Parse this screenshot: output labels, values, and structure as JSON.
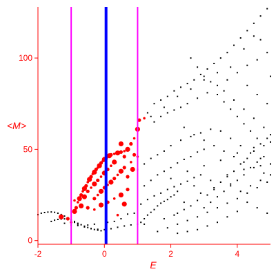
{
  "chart_data": {
    "type": "scatter",
    "xlabel": "E",
    "ylabel": "<M>",
    "xlim": [
      -2,
      5
    ],
    "ylim": [
      -2,
      128
    ],
    "x_ticks": [
      -2,
      0,
      2,
      4
    ],
    "y_ticks": [
      0,
      50,
      100
    ],
    "grid": false,
    "colors": {
      "axes": "#ff0000",
      "background_points": "#000000",
      "highlighted_points": "#ff0000",
      "center_line": "#0000ff",
      "bound_lines": "#ff00ff"
    },
    "vertical_lines": [
      {
        "x": -1.0,
        "color": "#ff00ff"
      },
      {
        "x": 0.05,
        "color": "#0000ff"
      },
      {
        "x": 1.0,
        "color": "#ff00ff"
      }
    ],
    "series": [
      {
        "color": "#000000",
        "points": [
          [
            -2.0,
            14.2
          ],
          [
            -1.9,
            15.0
          ],
          [
            -1.8,
            15.4
          ],
          [
            -1.7,
            15.6
          ],
          [
            -1.6,
            15.7
          ],
          [
            -1.5,
            15.5
          ],
          [
            -1.4,
            15.0
          ],
          [
            -1.3,
            14.3
          ],
          [
            -1.2,
            13.4
          ],
          [
            -1.1,
            12.4
          ],
          [
            -1.0,
            11.5
          ],
          [
            -0.9,
            10.5
          ],
          [
            -0.8,
            9.5
          ],
          [
            -0.7,
            8.7
          ],
          [
            -0.6,
            7.9
          ],
          [
            -0.5,
            7.2
          ],
          [
            -0.4,
            6.6
          ],
          [
            -0.3,
            6.1
          ],
          [
            -0.2,
            5.7
          ],
          [
            -0.1,
            5.4
          ],
          [
            -1.6,
            10.5
          ],
          [
            -1.5,
            11.2
          ],
          [
            -1.4,
            11.6
          ],
          [
            -1.3,
            11.8
          ],
          [
            -1.2,
            11.9
          ],
          [
            -1.1,
            11.7
          ],
          [
            -1.0,
            11.0
          ],
          [
            -0.9,
            10.0
          ],
          [
            -0.8,
            9.0
          ],
          [
            -0.6,
            7.5
          ],
          [
            -0.4,
            6.5
          ],
          [
            -0.2,
            6.2
          ],
          [
            0.0,
            6.0
          ],
          [
            0.2,
            6.5
          ],
          [
            0.4,
            7.3
          ],
          [
            0.6,
            8.0
          ],
          [
            0.8,
            8.6
          ],
          [
            1.0,
            9.0
          ],
          [
            1.1,
            10.0
          ],
          [
            1.2,
            12.0
          ],
          [
            -1.2,
            9.5
          ],
          [
            -1.0,
            8.5
          ],
          [
            -0.8,
            8.2
          ],
          [
            -0.5,
            8.5
          ],
          [
            -0.3,
            9.0
          ],
          [
            0.1,
            10.0
          ],
          [
            0.3,
            10.5
          ],
          [
            0.5,
            12.0
          ],
          [
            0.7,
            14.5
          ],
          [
            0.9,
            15.0
          ],
          [
            1.2,
            9.0
          ],
          [
            1.3,
            14.0
          ],
          [
            1.4,
            15.5
          ],
          [
            1.5,
            17.0
          ],
          [
            1.6,
            19.0
          ],
          [
            1.7,
            20.5
          ],
          [
            1.8,
            21.5
          ],
          [
            1.9,
            22.5
          ],
          [
            2.0,
            24.0
          ],
          [
            2.1,
            25.0
          ],
          [
            1.1,
            20.0
          ],
          [
            1.3,
            22.5
          ],
          [
            1.5,
            24.5
          ],
          [
            1.7,
            26.0
          ],
          [
            1.9,
            28.0
          ],
          [
            2.1,
            29.5
          ],
          [
            2.3,
            31.0
          ],
          [
            2.5,
            32.5
          ],
          [
            2.7,
            34.5
          ],
          [
            2.9,
            36.0
          ],
          [
            1.2,
            30.0
          ],
          [
            1.4,
            33.0
          ],
          [
            1.6,
            36.0
          ],
          [
            1.8,
            38.0
          ],
          [
            2.0,
            40.0
          ],
          [
            2.2,
            42.5
          ],
          [
            2.4,
            44.5
          ],
          [
            2.6,
            46.0
          ],
          [
            2.8,
            48.5
          ],
          [
            3.0,
            50.0
          ],
          [
            1.0,
            39.0
          ],
          [
            1.2,
            42.0
          ],
          [
            1.4,
            45.0
          ],
          [
            1.6,
            47.0
          ],
          [
            1.8,
            49.0
          ],
          [
            2.0,
            52.0
          ],
          [
            2.3,
            55.0
          ],
          [
            2.6,
            57.0
          ],
          [
            2.9,
            59.0
          ],
          [
            3.2,
            61.0
          ],
          [
            1.3,
            70.0
          ],
          [
            1.5,
            75.0
          ],
          [
            1.7,
            77.0
          ],
          [
            1.9,
            79.0
          ],
          [
            2.1,
            82.0
          ],
          [
            2.3,
            84.0
          ],
          [
            2.5,
            86.0
          ],
          [
            2.7,
            88.0
          ],
          [
            2.9,
            91.0
          ],
          [
            3.1,
            94.0
          ],
          [
            3.3,
            97.0
          ],
          [
            3.5,
            100.0
          ],
          [
            3.7,
            103.0
          ],
          [
            3.9,
            107.0
          ],
          [
            4.1,
            111.0
          ],
          [
            4.3,
            115.0
          ],
          [
            4.5,
            119.0
          ],
          [
            4.7,
            123.0
          ],
          [
            4.9,
            127.0
          ],
          [
            1.5,
            65.0
          ],
          [
            1.7,
            68.0
          ],
          [
            1.9,
            70.0
          ],
          [
            2.1,
            71.5
          ],
          [
            2.3,
            73.0
          ],
          [
            2.5,
            75.0
          ],
          [
            2.8,
            78.0
          ],
          [
            3.1,
            81.0
          ],
          [
            3.4,
            85.0
          ],
          [
            3.7,
            88.0
          ],
          [
            4.0,
            92.0
          ],
          [
            4.3,
            96.0
          ],
          [
            4.6,
            99.0
          ],
          [
            4.9,
            103.0
          ],
          [
            2.6,
            100.0
          ],
          [
            2.8,
            95.0
          ],
          [
            3.0,
            90.0
          ],
          [
            3.2,
            87.0
          ],
          [
            3.4,
            80.0
          ],
          [
            3.6,
            76.0
          ],
          [
            3.8,
            72.0
          ],
          [
            4.0,
            68.0
          ],
          [
            4.2,
            64.0
          ],
          [
            4.4,
            60.0
          ],
          [
            4.6,
            56.0
          ],
          [
            4.8,
            52.0
          ],
          [
            5.0,
            58.0
          ],
          [
            3.0,
            18.0
          ],
          [
            3.2,
            21.0
          ],
          [
            3.4,
            24.0
          ],
          [
            3.6,
            27.0
          ],
          [
            3.8,
            30.0
          ],
          [
            4.0,
            33.0
          ],
          [
            4.2,
            36.0
          ],
          [
            4.4,
            40.0
          ],
          [
            4.6,
            43.0
          ],
          [
            4.8,
            46.0
          ],
          [
            2.2,
            15.0
          ],
          [
            2.4,
            17.0
          ],
          [
            2.6,
            19.0
          ],
          [
            2.8,
            22.0
          ],
          [
            3.1,
            25.0
          ],
          [
            3.3,
            28.0
          ],
          [
            3.5,
            32.0
          ],
          [
            3.7,
            35.0
          ],
          [
            3.9,
            38.0
          ],
          [
            4.1,
            42.0
          ],
          [
            4.3,
            45.0
          ],
          [
            4.5,
            49.0
          ],
          [
            4.7,
            53.0
          ],
          [
            4.9,
            56.0
          ],
          [
            1.6,
            5.0
          ],
          [
            1.9,
            7.0
          ],
          [
            2.2,
            9.0
          ],
          [
            2.5,
            11.0
          ],
          [
            2.8,
            13.0
          ],
          [
            3.1,
            15.5
          ],
          [
            3.4,
            18.0
          ],
          [
            3.7,
            20.5
          ],
          [
            4.0,
            23.0
          ],
          [
            4.3,
            26.0
          ],
          [
            4.6,
            29.0
          ],
          [
            4.9,
            32.0
          ],
          [
            2.4,
            62.0
          ],
          [
            2.7,
            58.0
          ],
          [
            3.0,
            55.0
          ],
          [
            3.3,
            52.0
          ],
          [
            3.6,
            49.0
          ],
          [
            3.9,
            46.0
          ],
          [
            4.2,
            43.0
          ],
          [
            4.5,
            40.0
          ],
          [
            4.8,
            37.0
          ],
          [
            2.0,
            34.0
          ],
          [
            2.5,
            38.0
          ],
          [
            3.0,
            41.0
          ],
          [
            3.5,
            44.0
          ],
          [
            4.0,
            48.0
          ],
          [
            4.5,
            51.0
          ],
          [
            5.0,
            54.0
          ],
          [
            2.2,
            27.0
          ],
          [
            2.7,
            30.0
          ],
          [
            3.2,
            33.0
          ],
          [
            3.7,
            36.0
          ],
          [
            4.2,
            39.0
          ],
          [
            4.7,
            41.0
          ],
          [
            1.8,
            12.0
          ],
          [
            2.1,
            14.0
          ],
          [
            2.4,
            21.0
          ],
          [
            2.9,
            26.0
          ],
          [
            3.3,
            29.0
          ],
          [
            3.8,
            31.0
          ],
          [
            4.1,
            27.0
          ],
          [
            4.4,
            30.0
          ],
          [
            4.7,
            33.0
          ],
          [
            5.0,
            36.0
          ],
          [
            3.5,
            60.0
          ],
          [
            3.8,
            56.0
          ],
          [
            4.1,
            52.0
          ],
          [
            4.4,
            48.0
          ],
          [
            4.7,
            45.0
          ],
          [
            5.0,
            42.0
          ],
          [
            4.9,
            15.0
          ],
          [
            4.6,
            18.0
          ],
          [
            4.3,
            21.0
          ],
          [
            4.0,
            16.0
          ],
          [
            3.7,
            13.0
          ],
          [
            3.4,
            10.0
          ],
          [
            3.1,
            8.0
          ],
          [
            2.8,
            6.0
          ],
          [
            2.5,
            5.0
          ],
          [
            2.2,
            4.0
          ],
          [
            4.8,
            62.0
          ],
          [
            4.5,
            67.0
          ],
          [
            4.2,
            72.0
          ],
          [
            3.9,
            77.0
          ],
          [
            3.6,
            82.0
          ],
          [
            4.3,
            85.0
          ],
          [
            4.6,
            80.0
          ],
          [
            4.9,
            75.0
          ],
          [
            5.0,
            90.0
          ],
          [
            4.7,
            110.0
          ],
          [
            4.5,
            112.0
          ],
          [
            4.2,
            105.0
          ],
          [
            3.8,
            95.0
          ],
          [
            3.4,
            92.0
          ],
          [
            3.0,
            88.0
          ],
          [
            2.6,
            83.0
          ],
          [
            2.2,
            79.0
          ],
          [
            1.8,
            73.0
          ],
          [
            1.4,
            68.0
          ]
        ]
      },
      {
        "color": "#ff0000",
        "points": [
          [
            -1.3,
            13.0
          ],
          [
            -1.1,
            12.0
          ],
          [
            -1.0,
            10.0
          ],
          [
            -0.9,
            16.0
          ],
          [
            -0.85,
            18.0
          ],
          [
            -0.8,
            21.0
          ],
          [
            -0.75,
            23.0
          ],
          [
            -0.7,
            25.0
          ],
          [
            -0.65,
            27.0
          ],
          [
            -0.6,
            28.5
          ],
          [
            -0.55,
            30.0
          ],
          [
            -0.5,
            32.0
          ],
          [
            -0.45,
            33.5
          ],
          [
            -0.4,
            35.0
          ],
          [
            -0.35,
            36.5
          ],
          [
            -0.3,
            37.5
          ],
          [
            -0.25,
            39.0
          ],
          [
            -0.2,
            40.0
          ],
          [
            -0.15,
            41.0
          ],
          [
            -0.1,
            42.5
          ],
          [
            -0.05,
            43.5
          ],
          [
            0.0,
            44.5
          ],
          [
            0.05,
            45.0
          ],
          [
            0.1,
            46.0
          ],
          [
            0.15,
            46.5
          ],
          [
            0.2,
            47.0
          ],
          [
            0.3,
            47.5
          ],
          [
            0.4,
            48.0
          ],
          [
            0.5,
            48.5
          ],
          [
            0.6,
            49.0
          ],
          [
            0.7,
            50.0
          ],
          [
            0.8,
            53.0
          ],
          [
            0.9,
            56.0
          ],
          [
            1.0,
            61.0
          ],
          [
            1.05,
            66.0
          ],
          [
            1.2,
            67.0
          ],
          [
            -0.6,
            24.0
          ],
          [
            -0.5,
            27.0
          ],
          [
            -0.4,
            29.0
          ],
          [
            -0.3,
            31.0
          ],
          [
            -0.2,
            33.0
          ],
          [
            -0.1,
            35.0
          ],
          [
            0.0,
            37.0
          ],
          [
            0.1,
            39.0
          ],
          [
            0.2,
            41.0
          ],
          [
            0.3,
            43.0
          ],
          [
            -0.3,
            23.0
          ],
          [
            -0.2,
            25.0
          ],
          [
            -0.1,
            27.0
          ],
          [
            0.0,
            29.0
          ],
          [
            0.1,
            30.5
          ],
          [
            0.2,
            32.0
          ],
          [
            0.3,
            34.0
          ],
          [
            0.4,
            36.0
          ],
          [
            0.5,
            38.0
          ],
          [
            0.6,
            40.0
          ],
          [
            -0.9,
            22.0
          ],
          [
            -0.7,
            19.0
          ],
          [
            -0.5,
            18.0
          ],
          [
            -0.3,
            17.0
          ],
          [
            -0.1,
            19.5
          ],
          [
            0.1,
            21.0
          ],
          [
            0.3,
            23.0
          ],
          [
            0.5,
            25.0
          ],
          [
            0.7,
            28.0
          ],
          [
            0.4,
            14.0
          ],
          [
            0.6,
            20.0
          ],
          [
            0.7,
            35.0
          ],
          [
            0.8,
            43.0
          ],
          [
            0.85,
            39.0
          ],
          [
            0.9,
            47.0
          ],
          [
            1.0,
            46.0
          ],
          [
            0.5,
            53.0
          ],
          [
            0.6,
            46.0
          ]
        ]
      }
    ]
  }
}
